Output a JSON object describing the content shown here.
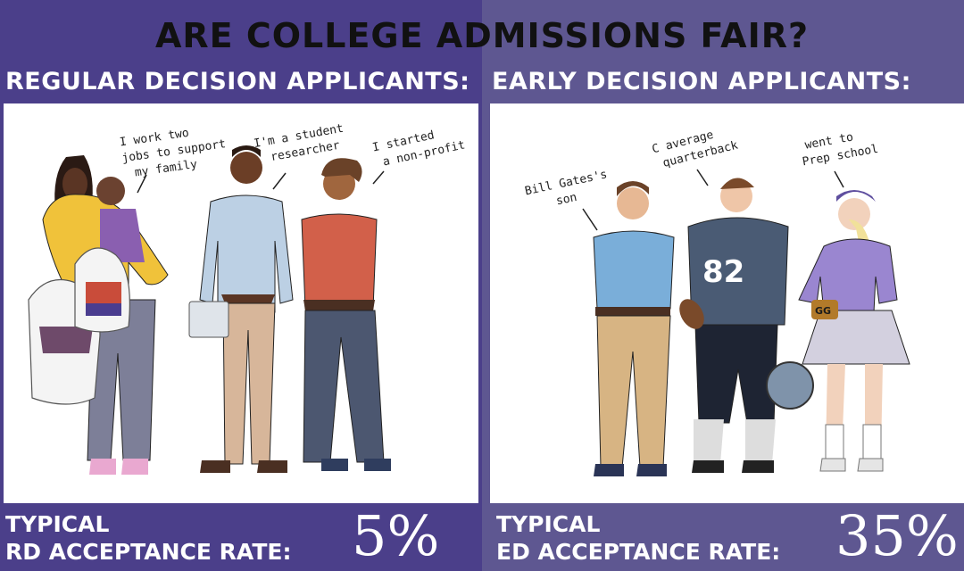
{
  "title": "ARE COLLEGE ADMISSIONS FAIR?",
  "left": {
    "heading": "REGULAR DECISION APPLICANTS:",
    "quotes": {
      "mother": [
        "I work two",
        "jobs to support",
        "my family"
      ],
      "researcher": [
        "I'm a student",
        "researcher"
      ],
      "founder": [
        "I started",
        "a non-profit"
      ]
    },
    "footer": {
      "line1": "TYPICAL",
      "line2": "RD ACCEPTANCE RATE:",
      "rate": "5%"
    }
  },
  "right": {
    "heading": "EARLY DECISION APPLICANTS:",
    "quotes": {
      "son": [
        "Bill Gates's",
        "son"
      ],
      "quarterback": [
        "C average",
        "quarterback"
      ],
      "prep": [
        "went to",
        "Prep school"
      ]
    },
    "jersey_number": "82",
    "bag_label": "GG",
    "footer": {
      "line1": "TYPICAL",
      "line2": "ED ACCEPTANCE RATE:",
      "rate": "35%"
    }
  },
  "colors": {
    "left_bg": "#4b3f8a",
    "right_bg": "#5e5791",
    "title": "#111111"
  }
}
